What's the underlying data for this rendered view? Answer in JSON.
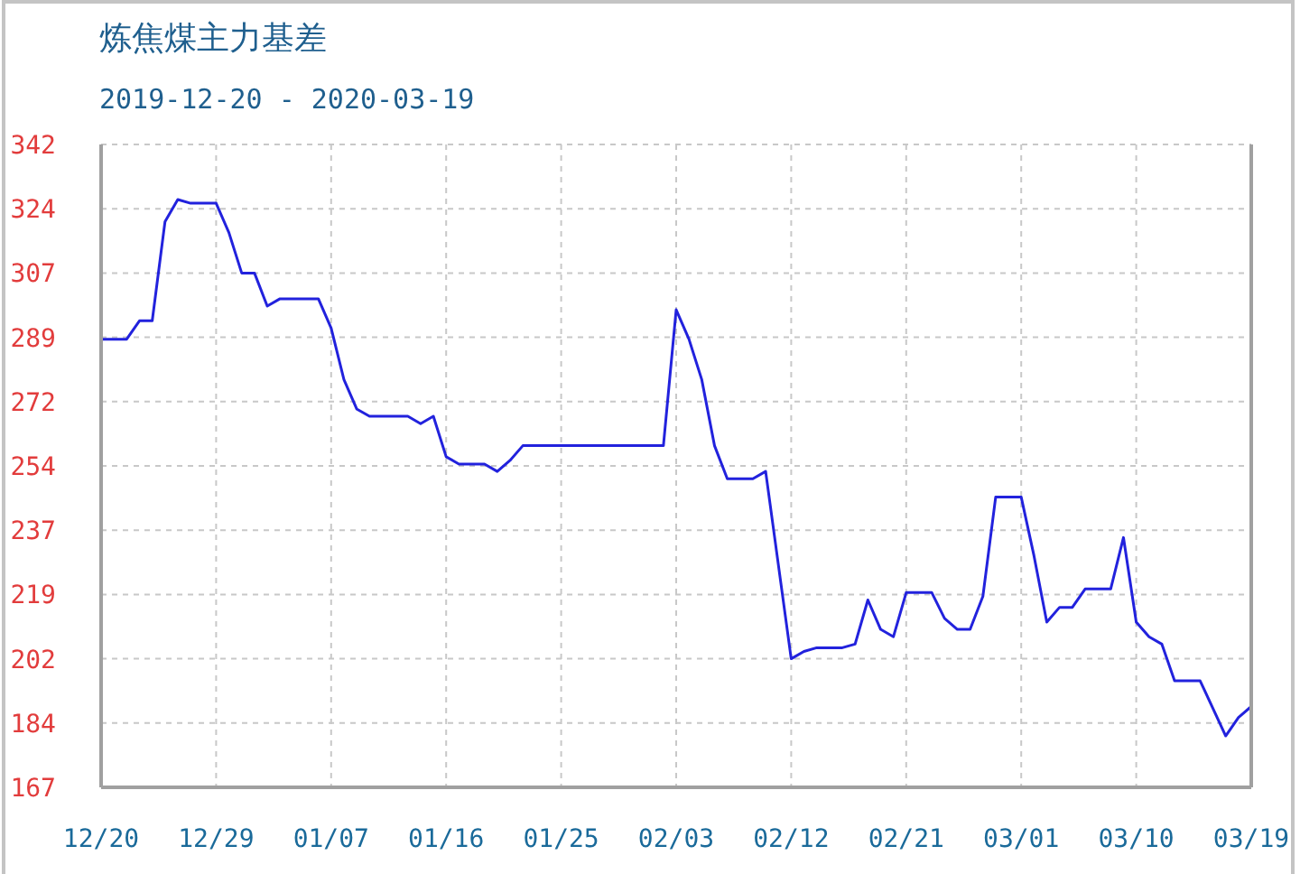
{
  "chart_data": {
    "type": "line",
    "title": "炼焦煤主力基差",
    "subtitle": "2019-12-20 - 2020-03-19",
    "x": [
      "2019-12-20",
      "2019-12-22",
      "2019-12-23",
      "2019-12-24",
      "2019-12-25",
      "2019-12-26",
      "2019-12-27",
      "2019-12-29",
      "2019-12-30",
      "2019-12-31",
      "2020-01-01",
      "2020-01-02",
      "2020-01-03",
      "2020-01-06",
      "2020-01-07",
      "2020-01-08",
      "2020-01-09",
      "2020-01-10",
      "2020-01-13",
      "2020-01-14",
      "2020-01-15",
      "2020-01-16",
      "2020-01-17",
      "2020-01-19",
      "2020-01-20",
      "2020-01-21",
      "2020-01-22",
      "2020-02-02",
      "2020-02-03",
      "2020-02-04",
      "2020-02-05",
      "2020-02-06",
      "2020-02-07",
      "2020-02-09",
      "2020-02-10",
      "2020-02-12",
      "2020-02-13",
      "2020-02-14",
      "2020-02-16",
      "2020-02-17",
      "2020-02-18",
      "2020-02-19",
      "2020-02-20",
      "2020-02-21",
      "2020-02-23",
      "2020-02-24",
      "2020-02-25",
      "2020-02-26",
      "2020-02-27",
      "2020-02-28",
      "2020-03-01",
      "2020-03-02",
      "2020-03-03",
      "2020-03-04",
      "2020-03-05",
      "2020-03-06",
      "2020-03-08",
      "2020-03-09",
      "2020-03-10",
      "2020-03-11",
      "2020-03-12",
      "2020-03-13",
      "2020-03-15",
      "2020-03-17",
      "2020-03-18",
      "2020-03-19"
    ],
    "values": [
      289,
      289,
      294,
      294,
      321,
      327,
      326,
      326,
      318,
      307,
      307,
      298,
      300,
      300,
      292,
      278,
      270,
      268,
      268,
      266,
      268,
      257,
      255,
      255,
      253,
      256,
      260,
      260,
      297,
      289,
      278,
      260,
      251,
      251,
      253,
      202,
      204,
      205,
      205,
      206,
      218,
      210,
      208,
      220,
      220,
      213,
      210,
      210,
      219,
      246,
      246,
      230,
      212,
      216,
      216,
      221,
      221,
      235,
      212,
      208,
      206,
      196,
      196,
      181,
      186,
      189
    ],
    "color": "#2222dd",
    "xlim": [
      "2019-12-20",
      "2020-03-19"
    ],
    "xticks": [
      {
        "value": "2019-12-20",
        "label": "12/20"
      },
      {
        "value": "2019-12-29",
        "label": "12/29"
      },
      {
        "value": "2020-01-07",
        "label": "01/07"
      },
      {
        "value": "2020-01-16",
        "label": "01/16"
      },
      {
        "value": "2020-01-25",
        "label": "01/25"
      },
      {
        "value": "2020-02-03",
        "label": "02/03"
      },
      {
        "value": "2020-02-12",
        "label": "02/12"
      },
      {
        "value": "2020-02-21",
        "label": "02/21"
      },
      {
        "value": "2020-03-01",
        "label": "03/01"
      },
      {
        "value": "2020-03-10",
        "label": "03/10"
      },
      {
        "value": "2020-03-19",
        "label": "03/19"
      }
    ],
    "ylim": [
      167,
      342
    ],
    "yticks": [
      167,
      {
        "value": 184.5,
        "label": "184"
      },
      202,
      {
        "value": 219.5,
        "label": "219"
      },
      237,
      {
        "value": 254.5,
        "label": "254"
      },
      272,
      {
        "value": 289.5,
        "label": "289"
      },
      307,
      {
        "value": 324.5,
        "label": "324"
      },
      342
    ],
    "grid": true
  }
}
